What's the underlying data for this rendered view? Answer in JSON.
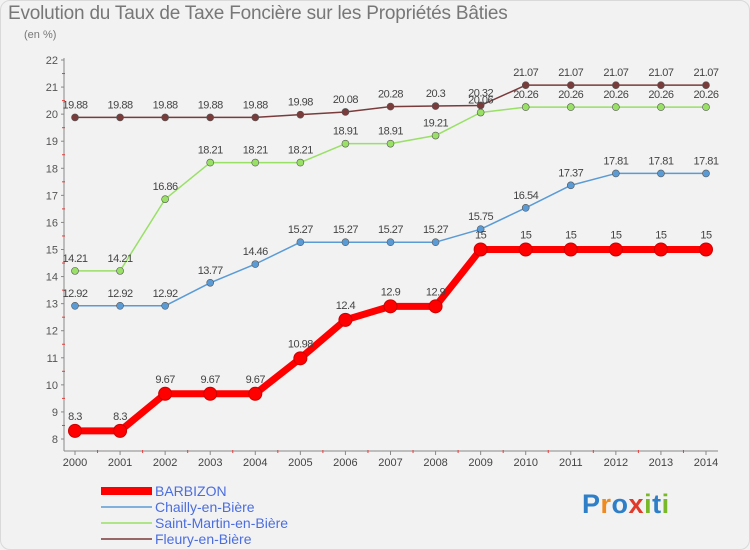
{
  "title": "Evolution du Taux de Taxe Foncière sur les Propriétés Bâties",
  "subtitle": "(en %)",
  "logo_text": "Proxiti",
  "chart_data": {
    "type": "line",
    "x": [
      "2000",
      "2001",
      "2002",
      "2003",
      "2004",
      "2005",
      "2006",
      "2007",
      "2008",
      "2009",
      "2010",
      "2011",
      "2012",
      "2013",
      "2014"
    ],
    "ylim": [
      8,
      22
    ],
    "yticks": [
      8,
      9,
      10,
      11,
      12,
      13,
      14,
      15,
      16,
      17,
      18,
      19,
      20,
      21,
      22
    ],
    "grid": false,
    "legend_position": "bottom-left",
    "series": [
      {
        "name": "BARBIZON",
        "color": "#ff0000",
        "values": [
          8.3,
          8.3,
          9.67,
          9.67,
          9.67,
          10.98,
          12.4,
          12.9,
          12.9,
          15,
          15,
          15,
          15,
          15,
          15
        ],
        "labels": [
          "8.3",
          "8.3",
          "9.67",
          "9.67",
          "9.67",
          "10.98",
          "12.4",
          "12.9",
          "12.9",
          "15",
          "15",
          "15",
          "15",
          "15",
          "15"
        ]
      },
      {
        "name": "Chailly-en-Bière",
        "color": "#5a9bd5",
        "values": [
          12.92,
          12.92,
          12.92,
          13.77,
          14.46,
          15.27,
          15.27,
          15.27,
          15.27,
          15.75,
          16.54,
          17.37,
          17.81,
          17.81,
          17.81
        ],
        "labels": [
          "12.92",
          "12.92",
          "12.92",
          "13.77",
          "14.46",
          "15.27",
          "15.27",
          "15.27",
          "15.27",
          "15.75",
          "16.54",
          "17.37",
          "17.81",
          "17.81",
          "17.81"
        ]
      },
      {
        "name": "Saint-Martin-en-Bière",
        "color": "#99e066",
        "values": [
          14.21,
          14.21,
          16.86,
          18.21,
          18.21,
          18.21,
          18.91,
          18.91,
          19.21,
          20.06,
          20.26,
          20.26,
          20.26,
          20.26,
          20.26
        ],
        "labels": [
          "14.21",
          "14.21",
          "16.86",
          "18.21",
          "18.21",
          "18.21",
          "18.91",
          "18.91",
          "19.21",
          "20.06",
          "20.26",
          "20.26",
          "20.26",
          "20.26",
          "20.26"
        ]
      },
      {
        "name": "Fleury-en-Bière",
        "color": "#7a3b3b",
        "values": [
          19.88,
          19.88,
          19.88,
          19.88,
          19.88,
          19.98,
          20.08,
          20.28,
          20.3,
          20.32,
          21.07,
          21.07,
          21.07,
          21.07,
          21.07
        ],
        "labels": [
          "19.88",
          "19.88",
          "19.88",
          "19.88",
          "19.88",
          "19.98",
          "20.08",
          "20.28",
          "20.3",
          "20.32",
          "21.07",
          "21.07",
          "21.07",
          "21.07",
          "21.07"
        ]
      }
    ]
  }
}
